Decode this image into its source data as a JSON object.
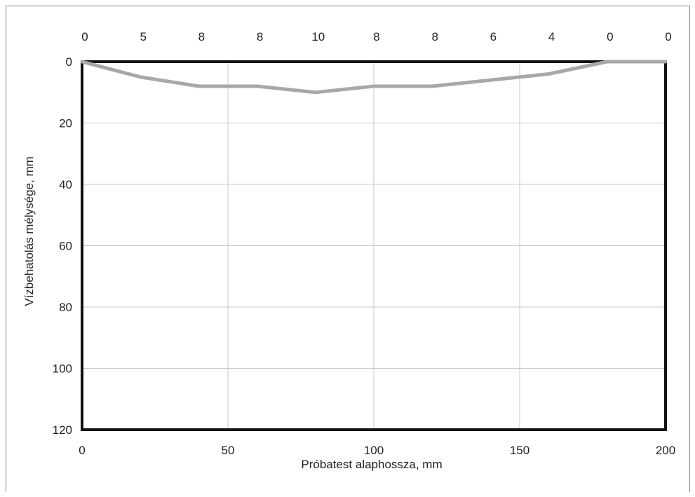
{
  "chart_data": {
    "type": "line",
    "xlabel": "Próbatest alaphossza, mm",
    "ylabel": "Vízbehatolás mélysége, mm",
    "xlim": [
      0,
      200
    ],
    "ylim": [
      0,
      120
    ],
    "y_inverted": true,
    "x_ticks": [
      "0",
      "50",
      "100",
      "150",
      "200"
    ],
    "y_ticks": [
      "0",
      "20",
      "40",
      "60",
      "80",
      "100",
      "120"
    ],
    "grid": true,
    "series": [
      {
        "x": [
          0,
          20,
          40,
          60,
          80,
          100,
          120,
          140,
          160,
          180,
          200
        ],
        "values": [
          0,
          5,
          8,
          8,
          10,
          8,
          8,
          6,
          4,
          0,
          0
        ]
      }
    ],
    "top_labels": [
      "0",
      "5",
      "8",
      "8",
      "10",
      "8",
      "8",
      "6",
      "4",
      "0",
      "0"
    ],
    "colors": {
      "series": "#a8a8a8",
      "axis": "#111111",
      "grid": "#c8c8c8"
    }
  }
}
